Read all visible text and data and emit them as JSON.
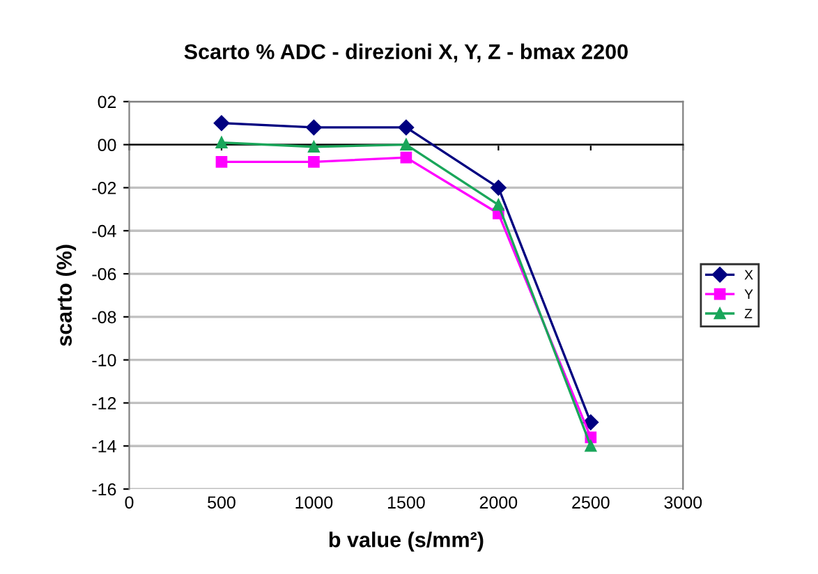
{
  "chart_data": {
    "type": "line",
    "title": "Scarto % ADC - direzioni X, Y, Z - bmax 2200",
    "xlabel": "b value (s/mm²)",
    "ylabel": "scarto (%)",
    "x": [
      500,
      1000,
      1500,
      2000,
      2500
    ],
    "series": [
      {
        "name": "X",
        "color": "#000080",
        "marker": "diamond",
        "values": [
          1.0,
          0.8,
          0.8,
          -2.0,
          -12.9
        ]
      },
      {
        "name": "Y",
        "color": "#ff00ff",
        "marker": "square",
        "values": [
          -0.8,
          -0.8,
          -0.6,
          -3.2,
          -13.6
        ]
      },
      {
        "name": "Z",
        "color": "#1aa65a",
        "marker": "triangle",
        "values": [
          0.1,
          -0.1,
          0.0,
          -2.8,
          -14.0
        ]
      }
    ],
    "xlim": [
      0,
      3000
    ],
    "xticks": [
      0,
      500,
      1000,
      1500,
      2000,
      2500,
      3000
    ],
    "ylim": [
      -16,
      2
    ],
    "yticks": [
      {
        "value": 2,
        "label": "02"
      },
      {
        "value": 0,
        "label": "00"
      },
      {
        "value": -2,
        "label": "-02"
      },
      {
        "value": -4,
        "label": "-04"
      },
      {
        "value": -6,
        "label": "-06"
      },
      {
        "value": -8,
        "label": "-08"
      },
      {
        "value": -10,
        "label": "-10"
      },
      {
        "value": -12,
        "label": "-12"
      },
      {
        "value": -14,
        "label": "-14"
      },
      {
        "value": -16,
        "label": "-16"
      }
    ],
    "grid": "y",
    "legend": "right",
    "line_style": "solid"
  }
}
